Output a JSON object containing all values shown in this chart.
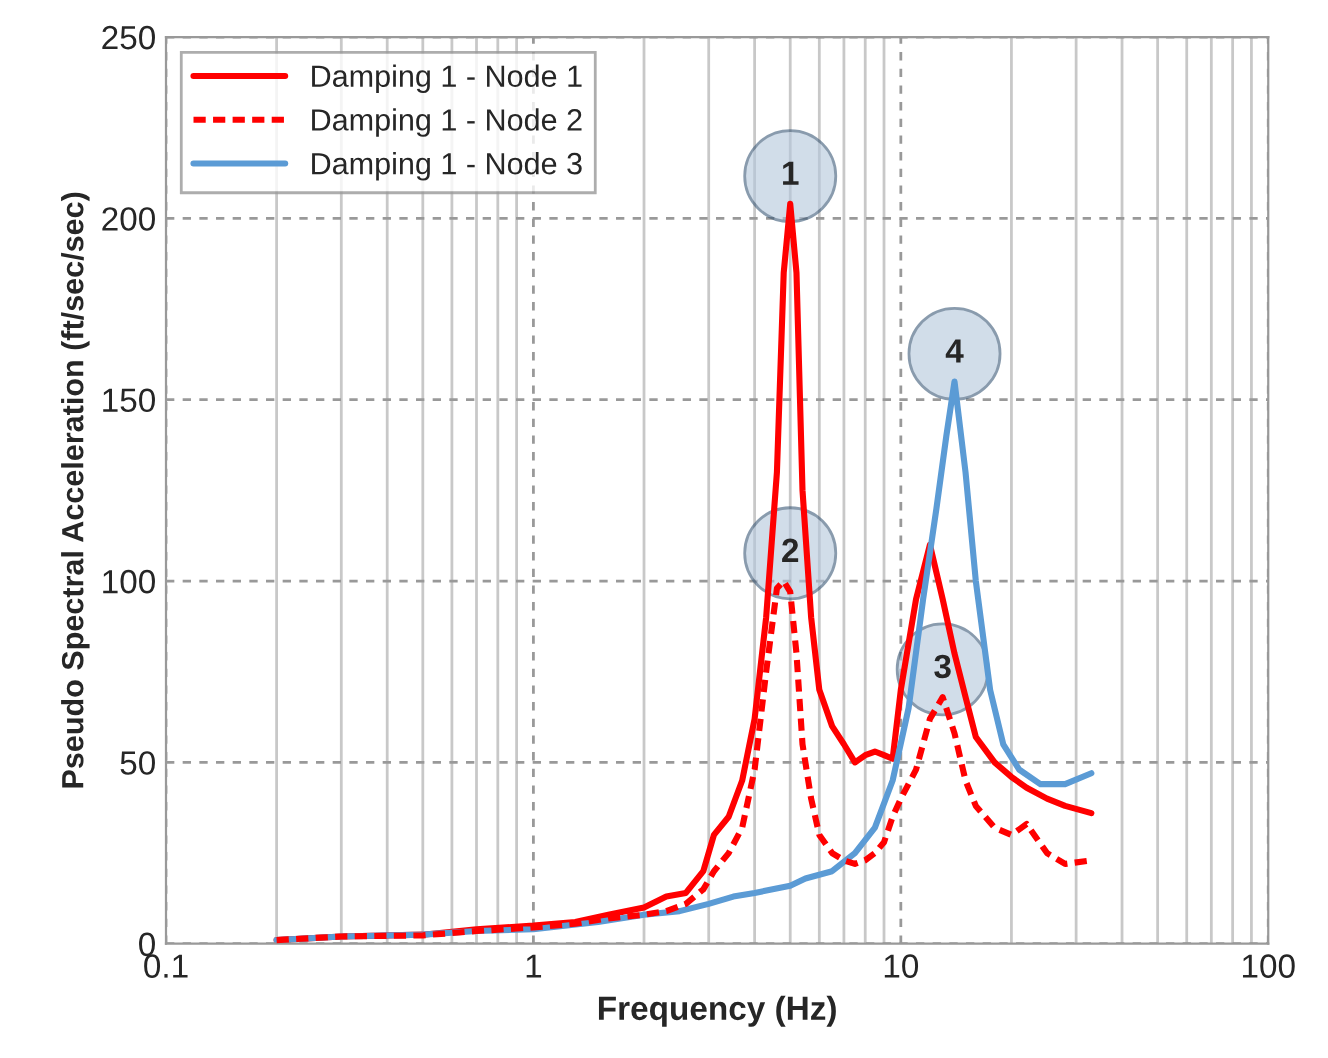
{
  "chart_data": {
    "type": "line",
    "xlabel": "Frequency (Hz)",
    "ylabel": "Pseudo Spectral Acceleration (ft/sec/sec)",
    "log": "x",
    "xlim": [
      0.1,
      100
    ],
    "xticks": [
      0.1,
      1,
      10,
      100
    ],
    "ylim": [
      0,
      250
    ],
    "yticks": [
      0,
      50,
      100,
      150,
      200,
      250
    ],
    "grid": true,
    "legend": "top left",
    "marker": "none",
    "series": [
      {
        "name": "Damping 1 - Node 1",
        "color": "#ff0000",
        "line_style": "solid",
        "x": [
          0.2,
          0.3,
          0.5,
          0.7,
          1.0,
          1.3,
          1.6,
          2.0,
          2.3,
          2.6,
          2.9,
          3.1,
          3.4,
          3.7,
          4.0,
          4.3,
          4.6,
          4.8,
          5.0,
          5.2,
          5.4,
          5.7,
          6.0,
          6.5,
          7.0,
          7.5,
          8.0,
          8.5,
          9.0,
          9.5,
          10,
          11,
          12,
          13,
          14,
          15,
          16,
          18,
          20,
          22,
          25,
          28,
          33
        ],
        "values": [
          1,
          2,
          2.5,
          4,
          5,
          6,
          8,
          10,
          13,
          14,
          20,
          30,
          35,
          45,
          62,
          90,
          130,
          185,
          204,
          185,
          125,
          90,
          70,
          60,
          55,
          50,
          52,
          53,
          52,
          51,
          70,
          95,
          110,
          95,
          80,
          68,
          57,
          50,
          46,
          43,
          40,
          38,
          36
        ]
      },
      {
        "name": "Damping 1 - Node 2",
        "color": "#ff0000",
        "line_style": "dashed",
        "x": [
          0.2,
          0.3,
          0.5,
          0.7,
          1.0,
          1.3,
          1.6,
          2.0,
          2.3,
          2.6,
          2.9,
          3.1,
          3.4,
          3.7,
          4.0,
          4.3,
          4.6,
          4.8,
          5.0,
          5.2,
          5.4,
          5.7,
          6.0,
          6.5,
          7.0,
          7.5,
          8.0,
          8.5,
          9.0,
          9.5,
          10,
          11,
          12,
          13,
          14,
          15,
          16,
          18,
          20,
          22,
          25,
          28,
          33
        ],
        "values": [
          1,
          2,
          2.3,
          3.5,
          4.5,
          5.5,
          7,
          8,
          9,
          11,
          15,
          20,
          25,
          32,
          48,
          75,
          98,
          100,
          97,
          80,
          55,
          40,
          30,
          25,
          23,
          22,
          23,
          25,
          28,
          35,
          40,
          48,
          62,
          68,
          58,
          45,
          38,
          32,
          30,
          33,
          25,
          22,
          23
        ]
      },
      {
        "name": "Damping 1 - Node 3",
        "color": "#5b9bd5",
        "line_style": "solid",
        "x": [
          0.2,
          0.3,
          0.5,
          0.7,
          1,
          1.5,
          2,
          2.5,
          3,
          3.5,
          4,
          5,
          5.5,
          6.5,
          7.5,
          8.5,
          9.5,
          10.5,
          11.5,
          12.5,
          13.3,
          14,
          15,
          16,
          17.5,
          19,
          21,
          24,
          28,
          33
        ],
        "values": [
          1,
          2,
          2.5,
          3.5,
          4,
          6,
          8,
          9,
          11,
          13,
          14,
          16,
          18,
          20,
          25,
          32,
          45,
          65,
          95,
          120,
          140,
          155,
          130,
          100,
          70,
          55,
          48,
          44,
          44,
          47
        ]
      }
    ],
    "annotations": [
      {
        "text": "1",
        "x": 5,
        "y": 204
      },
      {
        "text": "2",
        "x": 5,
        "y": 100
      },
      {
        "text": "3",
        "x": 13,
        "y": 68
      },
      {
        "text": "4",
        "x": 14,
        "y": 155
      }
    ]
  }
}
